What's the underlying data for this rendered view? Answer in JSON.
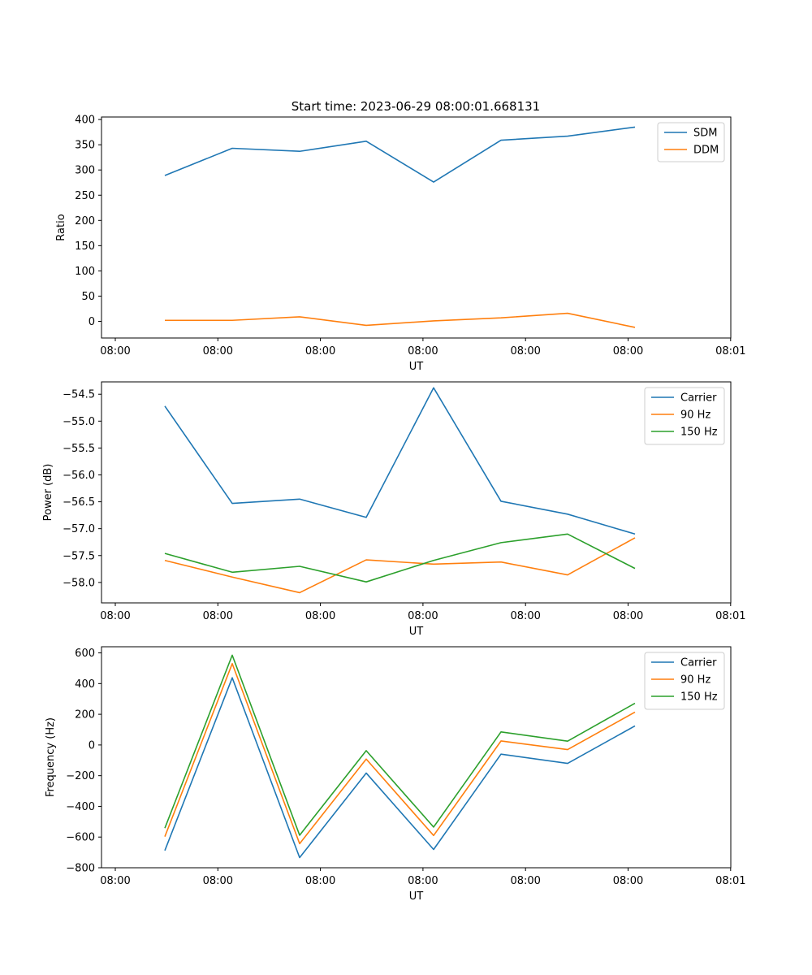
{
  "figure": {
    "title": "Start time: 2023-06-29 08:00:01.668131"
  },
  "colors": {
    "blue": "#1f77b4",
    "orange": "#ff7f0e",
    "green": "#2ca02c"
  },
  "chart_data": [
    {
      "type": "line",
      "title": "Start time: 2023-06-29 08:00:01.668131",
      "xlabel": "UT",
      "ylabel": "Ratio",
      "x_tick_labels": [
        "08:00",
        "08:00",
        "08:00",
        "08:00",
        "08:00",
        "08:00",
        "08:00",
        "08:01"
      ],
      "y_ticks": [
        0,
        50,
        100,
        150,
        200,
        250,
        300,
        350,
        400
      ],
      "ylim": [
        -33,
        405
      ],
      "legend_position": "top-right",
      "grid": false,
      "series": [
        {
          "name": "SDM",
          "color": "#1f77b4",
          "values": [
            289,
            343,
            337,
            357,
            276,
            359,
            367,
            385
          ]
        },
        {
          "name": "DDM",
          "color": "#ff7f0e",
          "values": [
            2,
            2,
            9,
            -8,
            1,
            7,
            16,
            -12
          ]
        }
      ]
    },
    {
      "type": "line",
      "title": "",
      "xlabel": "UT",
      "ylabel": "Power (dB)",
      "x_tick_labels": [
        "08:00",
        "08:00",
        "08:00",
        "08:00",
        "08:00",
        "08:00",
        "08:00",
        "08:01"
      ],
      "y_ticks": [
        -58.0,
        -57.5,
        -57.0,
        -56.5,
        -56.0,
        -55.5,
        -55.0,
        -54.5
      ],
      "y_tick_labels": [
        "−58.0",
        "−57.5",
        "−57.0",
        "−56.5",
        "−56.0",
        "−55.5",
        "−55.0",
        "−54.5"
      ],
      "ylim": [
        -58.38,
        -54.27
      ],
      "legend_position": "top-right",
      "grid": false,
      "series": [
        {
          "name": "Carrier",
          "color": "#1f77b4",
          "values": [
            -54.72,
            -56.53,
            -56.45,
            -56.79,
            -54.38,
            -56.49,
            -56.73,
            -57.1
          ]
        },
        {
          "name": "90 Hz",
          "color": "#ff7f0e",
          "values": [
            -57.59,
            -57.9,
            -58.19,
            -57.58,
            -57.66,
            -57.62,
            -57.86,
            -57.17
          ]
        },
        {
          "name": "150 Hz",
          "color": "#2ca02c",
          "values": [
            -57.46,
            -57.81,
            -57.7,
            -57.99,
            -57.59,
            -57.26,
            -57.1,
            -57.74
          ]
        }
      ]
    },
    {
      "type": "line",
      "title": "",
      "xlabel": "UT",
      "ylabel": "Frequency (Hz)",
      "x_tick_labels": [
        "08:00",
        "08:00",
        "08:00",
        "08:00",
        "08:00",
        "08:00",
        "08:00",
        "08:01"
      ],
      "y_ticks": [
        -800,
        -600,
        -400,
        -200,
        0,
        200,
        400,
        600
      ],
      "y_tick_labels": [
        "−800",
        "−600",
        "−400",
        "−200",
        "0",
        "200",
        "400",
        "600"
      ],
      "ylim": [
        -800,
        640
      ],
      "legend_position": "top-right",
      "grid": false,
      "series": [
        {
          "name": "Carrier",
          "color": "#1f77b4",
          "values": [
            -688,
            438,
            -734,
            -183,
            -681,
            -60,
            -120,
            124
          ]
        },
        {
          "name": "90 Hz",
          "color": "#ff7f0e",
          "values": [
            -597,
            530,
            -643,
            -92,
            -590,
            26,
            -30,
            214
          ]
        },
        {
          "name": "150 Hz",
          "color": "#2ca02c",
          "values": [
            -542,
            585,
            -588,
            -37,
            -535,
            85,
            25,
            272
          ]
        }
      ]
    }
  ]
}
